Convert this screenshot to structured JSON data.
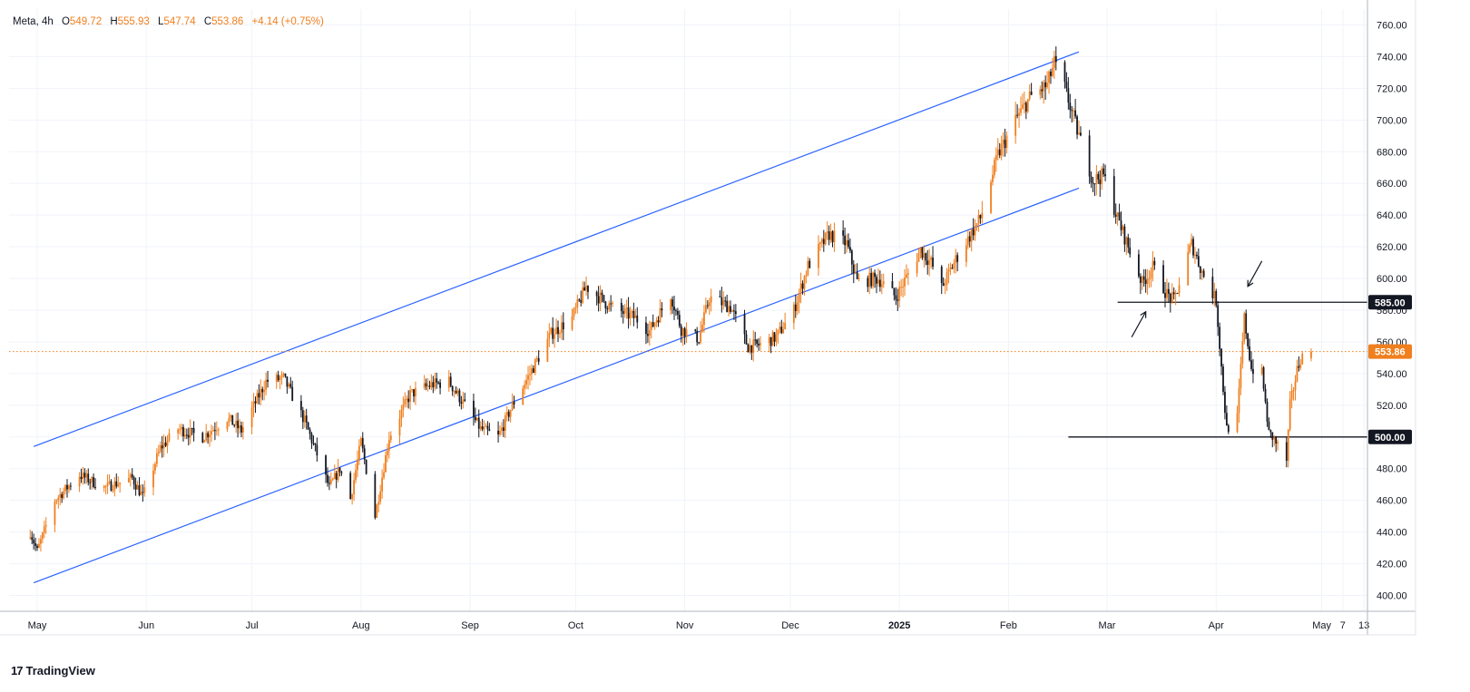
{
  "legend": {
    "symbol": "Meta",
    "interval": "4h",
    "open_label": "O",
    "open": "549.72",
    "high_label": "H",
    "high": "555.93",
    "low_label": "L",
    "low": "547.74",
    "close_label": "C",
    "close": "553.86",
    "change": "+4.14 (+0.75%)"
  },
  "branding": {
    "logo": "17",
    "name": "TradingView"
  },
  "colors": {
    "up": "#f07f1e",
    "down": "#131722",
    "channel": "#2962ff",
    "level": "#131722",
    "current": "#f07f1e",
    "grid": "#f0f3fa"
  },
  "chart_data": {
    "type": "candlestick",
    "y_range": [
      390,
      770
    ],
    "y_ticks": [
      "400.00",
      "420.00",
      "440.00",
      "460.00",
      "480.00",
      "500.00",
      "520.00",
      "540.00",
      "560.00",
      "580.00",
      "600.00",
      "620.00",
      "640.00",
      "660.00",
      "680.00",
      "700.00",
      "720.00",
      "740.00",
      "760.00"
    ],
    "x_ticks": [
      {
        "label": "May",
        "date": "2024-05-01",
        "bold": false
      },
      {
        "label": "Jun",
        "date": "2024-06-01",
        "bold": false
      },
      {
        "label": "Jul",
        "date": "2024-07-01",
        "bold": false
      },
      {
        "label": "Aug",
        "date": "2024-08-01",
        "bold": false
      },
      {
        "label": "Sep",
        "date": "2024-09-01",
        "bold": false
      },
      {
        "label": "Oct",
        "date": "2024-10-01",
        "bold": false
      },
      {
        "label": "Nov",
        "date": "2024-11-01",
        "bold": false
      },
      {
        "label": "Dec",
        "date": "2024-12-01",
        "bold": false
      },
      {
        "label": "2025",
        "date": "2025-01-01",
        "bold": true
      },
      {
        "label": "Feb",
        "date": "2025-02-01",
        "bold": false
      },
      {
        "label": "Mar",
        "date": "2025-03-01",
        "bold": false
      },
      {
        "label": "Apr",
        "date": "2025-04-01",
        "bold": false
      },
      {
        "label": "May",
        "date": "2025-05-01",
        "bold": false
      },
      {
        "label": "7",
        "date": "2025-05-07",
        "bold": false
      },
      {
        "label": "13",
        "date": "2025-05-13",
        "bold": false
      }
    ],
    "current_price": 553.86,
    "price_labels": [
      {
        "value": 585,
        "text": "585.00"
      },
      {
        "value": 500,
        "text": "500.00"
      },
      {
        "value": 553.86,
        "text": "553.86"
      }
    ],
    "horizontal_levels": [
      {
        "value": 585,
        "from": "2025-03-04"
      },
      {
        "value": 500,
        "from": "2025-02-18"
      }
    ],
    "channel_lines": [
      {
        "from": [
          "2024-04-30",
          494
        ],
        "to": [
          "2025-02-21",
          743
        ]
      },
      {
        "from": [
          "2024-04-30",
          408
        ],
        "to": [
          "2025-02-21",
          657
        ]
      }
    ],
    "arrows": [
      {
        "direction": "up",
        "from": [
          "2025-03-08",
          563
        ],
        "to": [
          "2025-03-12",
          579
        ]
      },
      {
        "direction": "down",
        "from": [
          "2025-04-14",
          611
        ],
        "to": [
          "2025-04-10",
          595
        ]
      }
    ],
    "swing_points": [
      [
        "2024-04-29",
        440
      ],
      [
        "2024-05-01",
        428
      ],
      [
        "2024-05-06",
        460
      ],
      [
        "2024-05-13",
        476
      ],
      [
        "2024-05-20",
        468
      ],
      [
        "2024-05-28",
        474
      ],
      [
        "2024-05-31",
        462
      ],
      [
        "2024-06-05",
        493
      ],
      [
        "2024-06-10",
        505
      ],
      [
        "2024-06-17",
        500
      ],
      [
        "2024-06-24",
        512
      ],
      [
        "2024-06-28",
        504
      ],
      [
        "2024-07-05",
        535
      ],
      [
        "2024-07-10",
        537
      ],
      [
        "2024-07-16",
        510
      ],
      [
        "2024-07-23",
        468
      ],
      [
        "2024-07-26",
        480
      ],
      [
        "2024-07-29",
        461
      ],
      [
        "2024-08-01",
        497
      ],
      [
        "2024-08-05",
        450
      ],
      [
        "2024-08-09",
        500
      ],
      [
        "2024-08-15",
        527
      ],
      [
        "2024-08-21",
        533
      ],
      [
        "2024-08-26",
        535
      ],
      [
        "2024-09-04",
        505
      ],
      [
        "2024-09-09",
        500
      ],
      [
        "2024-09-13",
        520
      ],
      [
        "2024-09-18",
        540
      ],
      [
        "2024-09-24",
        565
      ],
      [
        "2024-09-30",
        575
      ],
      [
        "2024-10-04",
        595
      ],
      [
        "2024-10-11",
        582
      ],
      [
        "2024-10-18",
        575
      ],
      [
        "2024-10-22",
        567
      ],
      [
        "2024-10-28",
        590
      ],
      [
        "2024-10-31",
        568
      ],
      [
        "2024-11-05",
        562
      ],
      [
        "2024-11-08",
        588
      ],
      [
        "2024-11-14",
        582
      ],
      [
        "2024-11-19",
        557
      ],
      [
        "2024-11-22",
        558
      ],
      [
        "2024-11-27",
        563
      ],
      [
        "2024-12-02",
        580
      ],
      [
        "2024-12-06",
        608
      ],
      [
        "2024-12-12",
        628
      ],
      [
        "2024-12-17",
        622
      ],
      [
        "2024-12-20",
        598
      ],
      [
        "2024-12-26",
        600
      ],
      [
        "2024-12-31",
        588
      ],
      [
        "2025-01-07",
        618
      ],
      [
        "2025-01-10",
        610
      ],
      [
        "2025-01-13",
        594
      ],
      [
        "2025-01-17",
        612
      ],
      [
        "2025-01-24",
        638
      ],
      [
        "2025-01-29",
        678
      ],
      [
        "2025-02-03",
        700
      ],
      [
        "2025-02-07",
        714
      ],
      [
        "2025-02-12",
        722
      ],
      [
        "2025-02-14",
        736
      ],
      [
        "2025-02-17",
        720
      ],
      [
        "2025-02-21",
        690
      ],
      [
        "2025-02-25",
        662
      ],
      [
        "2025-02-28",
        665
      ],
      [
        "2025-03-04",
        638
      ],
      [
        "2025-03-07",
        620
      ],
      [
        "2025-03-11",
        597
      ],
      [
        "2025-03-14",
        607
      ],
      [
        "2025-03-18",
        590
      ],
      [
        "2025-03-20",
        586
      ],
      [
        "2025-03-25",
        622
      ],
      [
        "2025-03-28",
        604
      ],
      [
        "2025-04-01",
        586
      ],
      [
        "2025-04-03",
        530
      ],
      [
        "2025-04-04",
        505
      ],
      [
        "2025-04-07",
        512
      ],
      [
        "2025-04-09",
        575
      ],
      [
        "2025-04-11",
        543
      ],
      [
        "2025-04-14",
        540
      ],
      [
        "2025-04-16",
        502
      ],
      [
        "2025-04-17",
        500
      ],
      [
        "2025-04-21",
        485
      ],
      [
        "2025-04-22",
        520
      ],
      [
        "2025-04-24",
        542
      ],
      [
        "2025-04-25",
        550
      ],
      [
        "2025-04-28",
        553.86
      ]
    ]
  }
}
